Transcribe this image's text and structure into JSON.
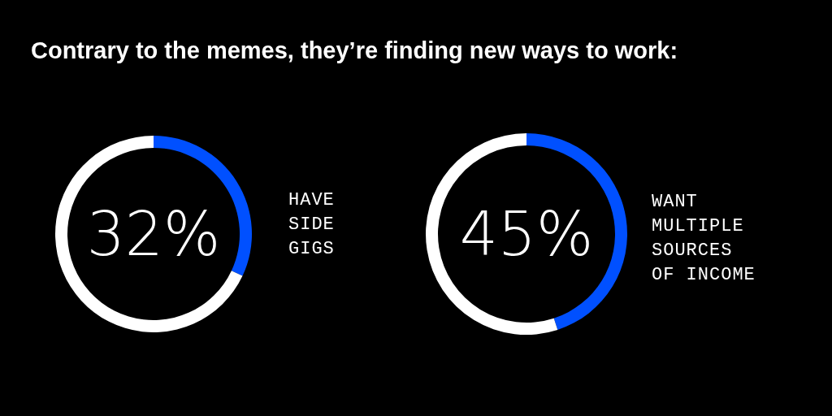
{
  "chart_data": [
    {
      "type": "donut",
      "title": "Contrary to the memes, they’re finding new ways to work:",
      "categories": [
        "HAVE\nSIDE\nGIGS",
        null
      ],
      "values": [
        32,
        68
      ],
      "colors": [
        "#0050ff",
        "#ffffff"
      ],
      "value_labels": [
        "32%",
        null
      ]
    },
    {
      "type": "donut",
      "categories": [
        "WANT\nMULTIPLE\nSOURCES\nOF INCOME",
        null
      ],
      "values": [
        45,
        55
      ],
      "colors": [
        "#0050ff",
        "#ffffff"
      ],
      "value_labels": [
        "45%",
        null
      ]
    }
  ]
}
